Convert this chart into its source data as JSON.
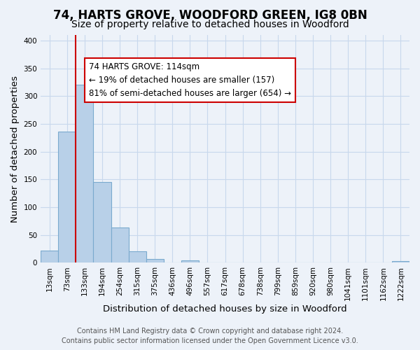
{
  "title": "74, HARTS GROVE, WOODFORD GREEN, IG8 0BN",
  "subtitle": "Size of property relative to detached houses in Woodford",
  "xlabel": "Distribution of detached houses by size in Woodford",
  "ylabel": "Number of detached properties",
  "bar_labels": [
    "13sqm",
    "73sqm",
    "133sqm",
    "194sqm",
    "254sqm",
    "315sqm",
    "375sqm",
    "436sqm",
    "496sqm",
    "557sqm",
    "617sqm",
    "678sqm",
    "738sqm",
    "799sqm",
    "859sqm",
    "920sqm",
    "980sqm",
    "1041sqm",
    "1101sqm",
    "1162sqm",
    "1222sqm"
  ],
  "bar_values": [
    22,
    236,
    320,
    145,
    64,
    21,
    7,
    0,
    4,
    0,
    0,
    0,
    0,
    0,
    0,
    0,
    0,
    0,
    0,
    0,
    3
  ],
  "bar_color": "#b8d0e8",
  "bar_edge_color": "#7aaace",
  "vline_color": "#cc0000",
  "annotation_title": "74 HARTS GROVE: 114sqm",
  "annotation_line1": "← 19% of detached houses are smaller (157)",
  "annotation_line2": "81% of semi-detached houses are larger (654) →",
  "annotation_box_color": "#ffffff",
  "annotation_box_edge": "#cc0000",
  "ylim": [
    0,
    410
  ],
  "yticks": [
    0,
    50,
    100,
    150,
    200,
    250,
    300,
    350,
    400
  ],
  "footer_line1": "Contains HM Land Registry data © Crown copyright and database right 2024.",
  "footer_line2": "Contains public sector information licensed under the Open Government Licence v3.0.",
  "background_color": "#edf2f9",
  "grid_color": "#c8d8ec",
  "title_fontsize": 12,
  "subtitle_fontsize": 10,
  "axis_label_fontsize": 9.5,
  "tick_fontsize": 7.5,
  "footer_fontsize": 7,
  "annotation_fontsize": 8.5
}
